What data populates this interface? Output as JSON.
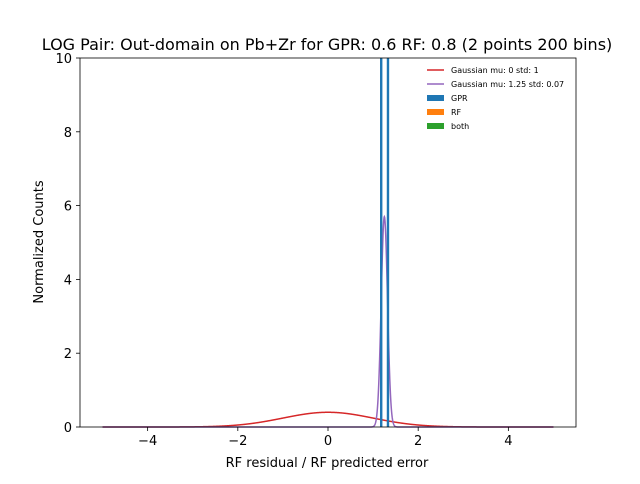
{
  "chart_data": {
    "type": "line",
    "title": "LOG Pair: Out-domain on Pb+Zr for GPR: 0.6 RF: 0.8 (2 points 200 bins)",
    "xlabel": "RF residual / RF predicted error",
    "ylabel": "Normalized Counts",
    "xlim": [
      -5.5,
      5.5
    ],
    "ylim": [
      0,
      10
    ],
    "xticks": [
      -4,
      -2,
      0,
      2,
      4
    ],
    "xtick_labels": [
      "−4",
      "−2",
      "0",
      "2",
      "4"
    ],
    "yticks": [
      0,
      2,
      4,
      6,
      8,
      10
    ],
    "ytick_labels": [
      "0",
      "2",
      "4",
      "6",
      "8",
      "10"
    ],
    "grid": false,
    "legend_position": "top-right",
    "series": [
      {
        "name": "Gaussian mu: 0 std: 1",
        "kind": "gaussian",
        "mu": 0,
        "std": 1,
        "x_range": [
          -5,
          5
        ],
        "color": "#d62728"
      },
      {
        "name": "Gaussian mu: 1.25 std: 0.07",
        "kind": "gaussian",
        "mu": 1.25,
        "std": 0.07,
        "x_range": [
          -5,
          5
        ],
        "color": "#9467bd"
      },
      {
        "name": "GPR",
        "kind": "histogram",
        "bars": [
          {
            "x": 1.18,
            "height": 10.0
          },
          {
            "x": 1.33,
            "height": 10.0
          }
        ],
        "color": "#1f77b4"
      },
      {
        "name": "RF",
        "kind": "histogram",
        "bars": [],
        "color": "#ff7f0e"
      },
      {
        "name": "both",
        "kind": "histogram",
        "bars": [],
        "color": "#2ca02c"
      }
    ]
  }
}
